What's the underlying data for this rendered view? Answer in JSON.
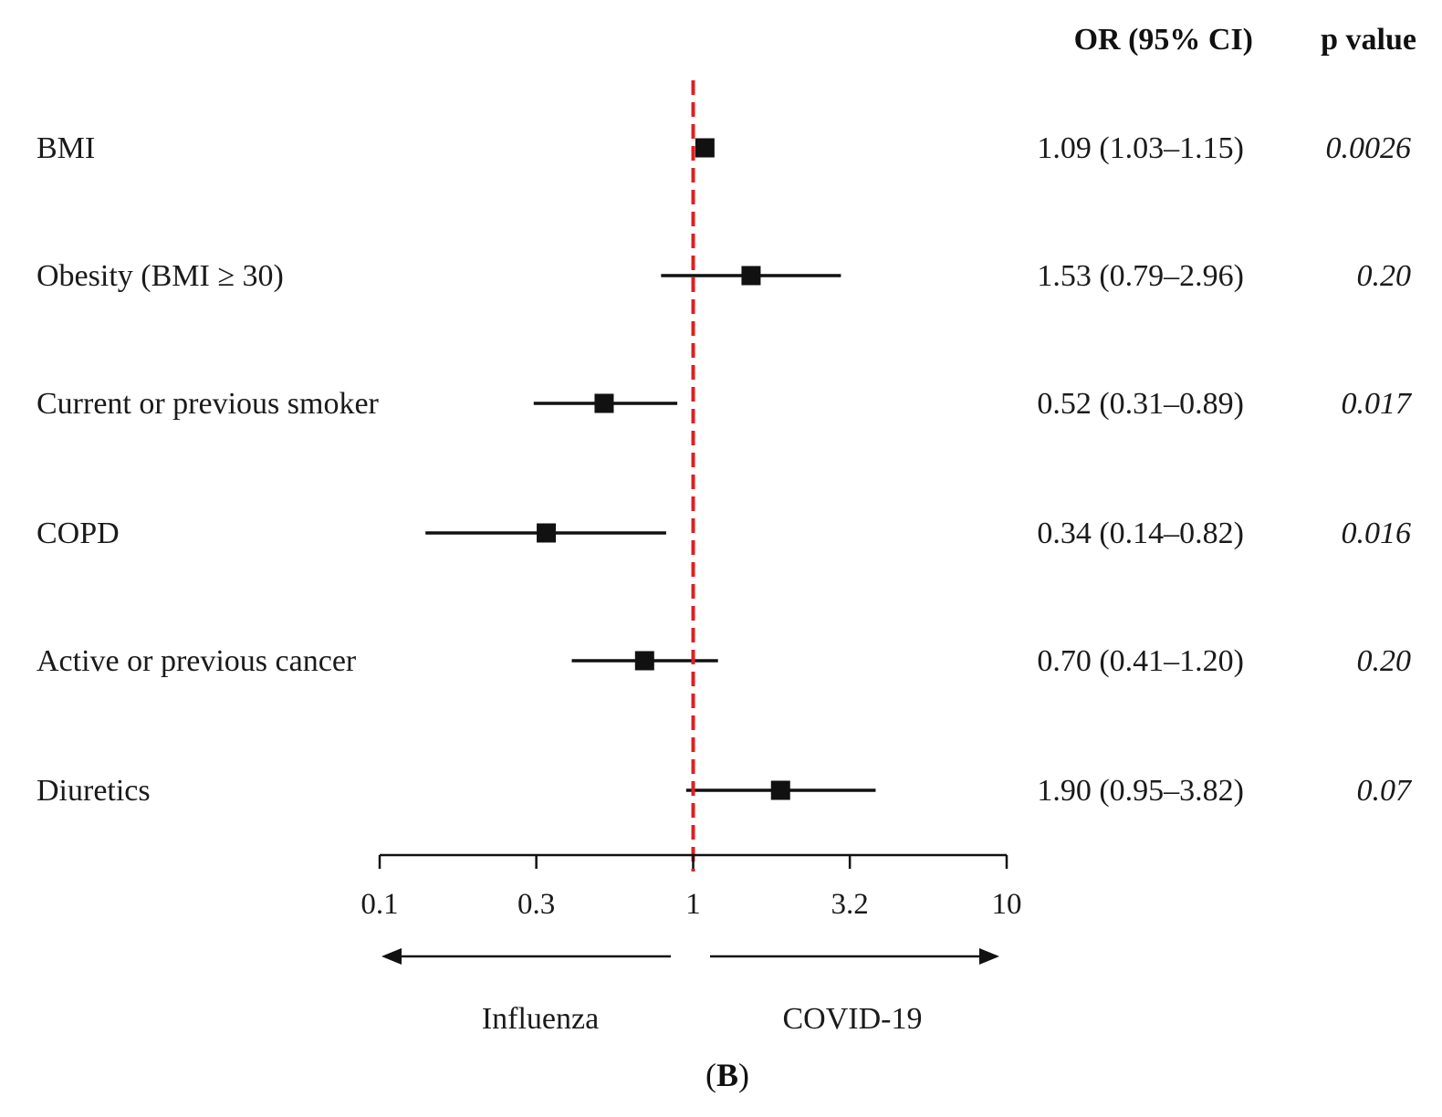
{
  "chart_data": {
    "type": "forest",
    "x_scale": "log",
    "xlim": [
      0.1,
      10
    ],
    "x_ticks": [
      "0.1",
      "0.3",
      "1",
      "3.2",
      "10"
    ],
    "x_tick_values": [
      0.1,
      0.316,
      1,
      3.16,
      10
    ],
    "reference_line": {
      "x": 1,
      "style": "dashed",
      "color": "#e02020"
    },
    "column_headers": {
      "or": "OR (95% CI)",
      "p": "p value"
    },
    "rows": [
      {
        "label": "BMI",
        "or": 1.09,
        "ci_low": 1.03,
        "ci_high": 1.15,
        "or_text": "1.09 (1.03–1.15)",
        "p_text": "0.0026"
      },
      {
        "label": "Obesity (BMI ≥ 30)",
        "or": 1.53,
        "ci_low": 0.79,
        "ci_high": 2.96,
        "or_text": "1.53 (0.79–2.96)",
        "p_text": "0.20"
      },
      {
        "label": "Current or previous smoker",
        "or": 0.52,
        "ci_low": 0.31,
        "ci_high": 0.89,
        "or_text": "0.52 (0.31–0.89)",
        "p_text": "0.017"
      },
      {
        "label": "COPD",
        "or": 0.34,
        "ci_low": 0.14,
        "ci_high": 0.82,
        "or_text": "0.34 (0.14–0.82)",
        "p_text": "0.016"
      },
      {
        "label": "Active or previous cancer",
        "or": 0.7,
        "ci_low": 0.41,
        "ci_high": 1.2,
        "or_text": "0.70 (0.41–1.20)",
        "p_text": "0.20"
      },
      {
        "label": "Diuretics",
        "or": 1.9,
        "ci_low": 0.95,
        "ci_high": 3.82,
        "or_text": "1.90 (0.95–3.82)",
        "p_text": "0.07"
      }
    ],
    "direction_labels": {
      "left": "Influenza",
      "right": "COVID-19"
    },
    "panel_label": {
      "open": "(",
      "letter": "B",
      "close": ")"
    },
    "colors": {
      "marker": "#111111",
      "line": "#111111",
      "reference": "#e02020"
    }
  }
}
